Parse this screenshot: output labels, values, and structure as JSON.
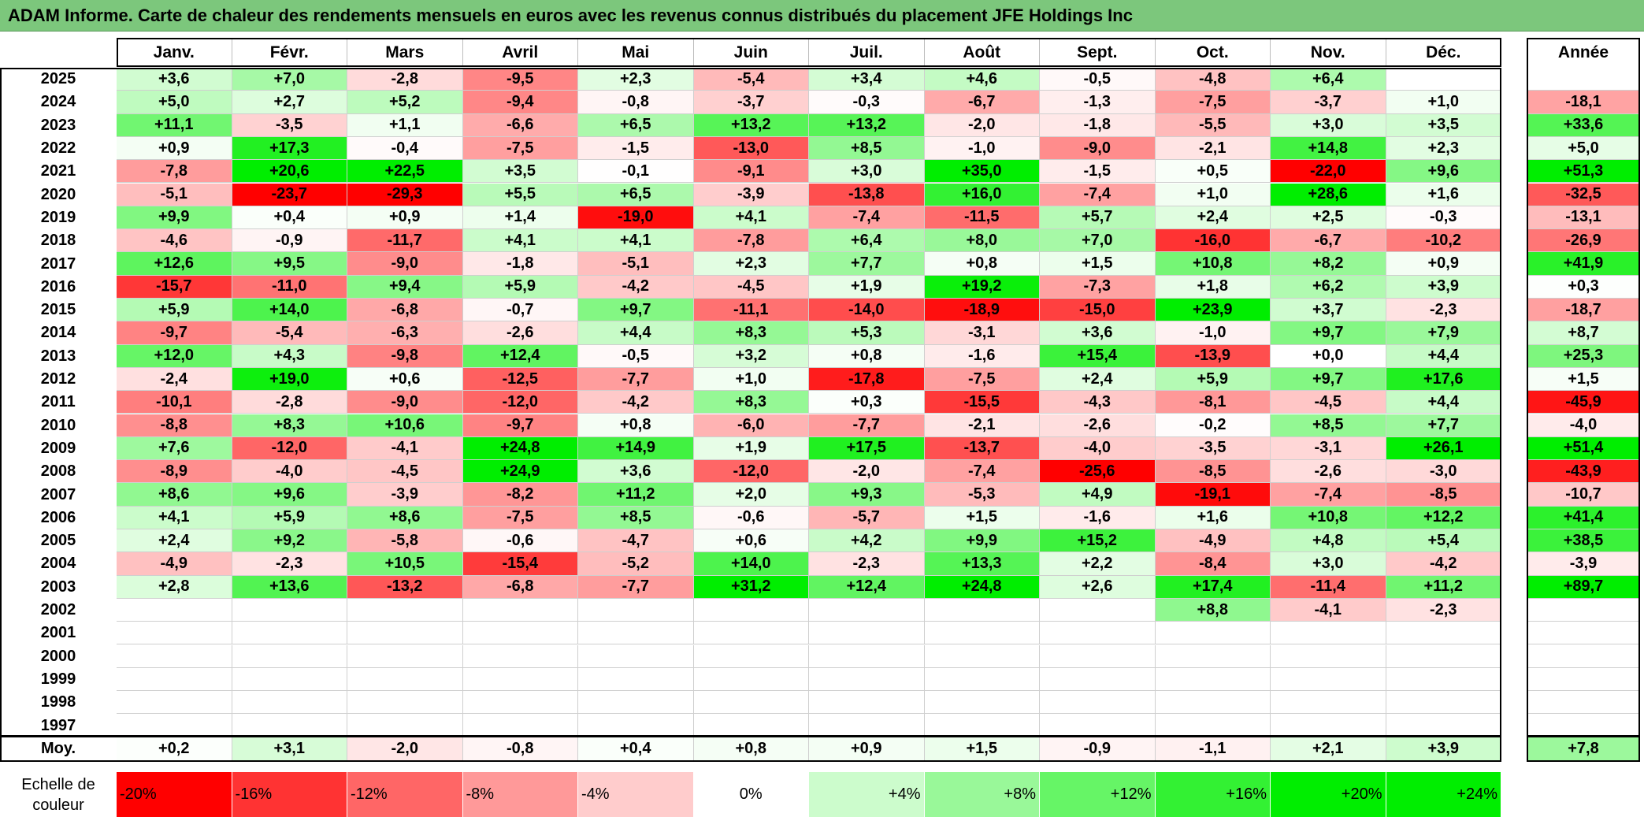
{
  "title": "ADAM Informe. Carte de chaleur des rendements mensuels en euros avec les revenus connus distribués du placement JFE Holdings Inc",
  "months": [
    "Janv.",
    "Févr.",
    "Mars",
    "Avril",
    "Mai",
    "Juin",
    "Juil.",
    "Août",
    "Sept.",
    "Oct.",
    "Nov.",
    "Déc."
  ],
  "year_header": "Année",
  "avg_label": "Moy.",
  "scale_label": "Echelle de couleur",
  "scale": [
    {
      "label": "-20%",
      "value": -20,
      "align": "left"
    },
    {
      "label": "-16%",
      "value": -16,
      "align": "left"
    },
    {
      "label": "-12%",
      "value": -12,
      "align": "left"
    },
    {
      "label": "-8%",
      "value": -8,
      "align": "left"
    },
    {
      "label": "-4%",
      "value": -4,
      "align": "left"
    },
    {
      "label": "0%",
      "value": 0,
      "align": "center"
    },
    {
      "label": "+4%",
      "value": 4,
      "align": "right"
    },
    {
      "label": "+8%",
      "value": 8,
      "align": "right"
    },
    {
      "label": "+12%",
      "value": 12,
      "align": "right"
    },
    {
      "label": "+16%",
      "value": 16,
      "align": "right"
    },
    {
      "label": "+20%",
      "value": 20,
      "align": "right"
    },
    {
      "label": "+24%",
      "value": 24,
      "align": "right"
    }
  ],
  "colors": {
    "title_bg": "#7cc77c",
    "max_red": "#ff0000",
    "max_green": "#00ee00",
    "neutral": "#ffffff"
  },
  "chart_data": {
    "type": "heatmap",
    "title": "ADAM Informe. Carte de chaleur des rendements mensuels en euros avec les revenus connus distribués du placement JFE Holdings Inc",
    "x": [
      "Janv.",
      "Févr.",
      "Mars",
      "Avril",
      "Mai",
      "Juin",
      "Juil.",
      "Août",
      "Sept.",
      "Oct.",
      "Nov.",
      "Déc."
    ],
    "rows": [
      {
        "year": "2025",
        "values": [
          "+3,6",
          "+7,0",
          "-2,8",
          "-9,5",
          "+2,3",
          "-5,4",
          "+3,4",
          "+4,6",
          "-0,5",
          "-4,8",
          "+6,4",
          ""
        ],
        "annual": ""
      },
      {
        "year": "2024",
        "values": [
          "+5,0",
          "+2,7",
          "+5,2",
          "-9,4",
          "-0,8",
          "-3,7",
          "-0,3",
          "-6,7",
          "-1,3",
          "-7,5",
          "-3,7",
          "+1,0"
        ],
        "annual": "-18,1"
      },
      {
        "year": "2023",
        "values": [
          "+11,1",
          "-3,5",
          "+1,1",
          "-6,6",
          "+6,5",
          "+13,2",
          "+13,2",
          "-2,0",
          "-1,8",
          "-5,5",
          "+3,0",
          "+3,5"
        ],
        "annual": "+33,6"
      },
      {
        "year": "2022",
        "values": [
          "+0,9",
          "+17,3",
          "-0,4",
          "-7,5",
          "-1,5",
          "-13,0",
          "+8,5",
          "-1,0",
          "-9,0",
          "-2,1",
          "+14,8",
          "+2,3"
        ],
        "annual": "+5,0"
      },
      {
        "year": "2021",
        "values": [
          "-7,8",
          "+20,6",
          "+22,5",
          "+3,5",
          "-0,1",
          "-9,1",
          "+3,0",
          "+35,0",
          "-1,5",
          "+0,5",
          "-22,0",
          "+9,6"
        ],
        "annual": "+51,3"
      },
      {
        "year": "2020",
        "values": [
          "-5,1",
          "-23,7",
          "-29,3",
          "+5,5",
          "+6,5",
          "-3,9",
          "-13,8",
          "+16,0",
          "-7,4",
          "+1,0",
          "+28,6",
          "+1,6"
        ],
        "annual": "-32,5"
      },
      {
        "year": "2019",
        "values": [
          "+9,9",
          "+0,4",
          "+0,9",
          "+1,4",
          "-19,0",
          "+4,1",
          "-7,4",
          "-11,5",
          "+5,7",
          "+2,4",
          "+2,5",
          "-0,3"
        ],
        "annual": "-13,1"
      },
      {
        "year": "2018",
        "values": [
          "-4,6",
          "-0,9",
          "-11,7",
          "+4,1",
          "+4,1",
          "-7,8",
          "+6,4",
          "+8,0",
          "+7,0",
          "-16,0",
          "-6,7",
          "-10,2"
        ],
        "annual": "-26,9"
      },
      {
        "year": "2017",
        "values": [
          "+12,6",
          "+9,5",
          "-9,0",
          "-1,8",
          "-5,1",
          "+2,3",
          "+7,7",
          "+0,8",
          "+1,5",
          "+10,8",
          "+8,2",
          "+0,9"
        ],
        "annual": "+41,9"
      },
      {
        "year": "2016",
        "values": [
          "-15,7",
          "-11,0",
          "+9,4",
          "+5,9",
          "-4,2",
          "-4,5",
          "+1,9",
          "+19,2",
          "-7,3",
          "+1,8",
          "+6,2",
          "+3,9"
        ],
        "annual": "+0,3"
      },
      {
        "year": "2015",
        "values": [
          "+5,9",
          "+14,0",
          "-6,8",
          "-0,7",
          "+9,7",
          "-11,1",
          "-14,0",
          "-18,9",
          "-15,0",
          "+23,9",
          "+3,7",
          "-2,3"
        ],
        "annual": "-18,7"
      },
      {
        "year": "2014",
        "values": [
          "-9,7",
          "-5,4",
          "-6,3",
          "-2,6",
          "+4,4",
          "+8,3",
          "+5,3",
          "-3,1",
          "+3,6",
          "-1,0",
          "+9,7",
          "+7,9"
        ],
        "annual": "+8,7"
      },
      {
        "year": "2013",
        "values": [
          "+12,0",
          "+4,3",
          "-9,8",
          "+12,4",
          "-0,5",
          "+3,2",
          "+0,8",
          "-1,6",
          "+15,4",
          "-13,9",
          "+0,0",
          "+4,4"
        ],
        "annual": "+25,3"
      },
      {
        "year": "2012",
        "values": [
          "-2,4",
          "+19,0",
          "+0,6",
          "-12,5",
          "-7,7",
          "+1,0",
          "-17,8",
          "-7,5",
          "+2,4",
          "+5,9",
          "+9,7",
          "+17,6"
        ],
        "annual": "+1,5"
      },
      {
        "year": "2011",
        "values": [
          "-10,1",
          "-2,8",
          "-9,0",
          "-12,0",
          "-4,2",
          "+8,3",
          "+0,3",
          "-15,5",
          "-4,3",
          "-8,1",
          "-4,5",
          "+4,4"
        ],
        "annual": "-45,9"
      },
      {
        "year": "2010",
        "values": [
          "-8,8",
          "+8,3",
          "+10,6",
          "-9,7",
          "+0,8",
          "-6,0",
          "-7,7",
          "-2,1",
          "-2,6",
          "-0,2",
          "+8,5",
          "+7,7"
        ],
        "annual": "-4,0"
      },
      {
        "year": "2009",
        "values": [
          "+7,6",
          "-12,0",
          "-4,1",
          "+24,8",
          "+14,9",
          "+1,9",
          "+17,5",
          "-13,7",
          "-4,0",
          "-3,5",
          "-3,1",
          "+26,1"
        ],
        "annual": "+51,4"
      },
      {
        "year": "2008",
        "values": [
          "-8,9",
          "-4,0",
          "-4,5",
          "+24,9",
          "+3,6",
          "-12,0",
          "-2,0",
          "-7,4",
          "-25,6",
          "-8,5",
          "-2,6",
          "-3,0"
        ],
        "annual": "-43,9"
      },
      {
        "year": "2007",
        "values": [
          "+8,6",
          "+9,6",
          "-3,9",
          "-8,2",
          "+11,2",
          "+2,0",
          "+9,3",
          "-5,3",
          "+4,9",
          "-19,1",
          "-7,4",
          "-8,5"
        ],
        "annual": "-10,7"
      },
      {
        "year": "2006",
        "values": [
          "+4,1",
          "+5,9",
          "+8,6",
          "-7,5",
          "+8,5",
          "-0,6",
          "-5,7",
          "+1,5",
          "-1,6",
          "+1,6",
          "+10,8",
          "+12,2"
        ],
        "annual": "+41,4"
      },
      {
        "year": "2005",
        "values": [
          "+2,4",
          "+9,2",
          "-5,8",
          "-0,6",
          "-4,7",
          "+0,6",
          "+4,2",
          "+9,9",
          "+15,2",
          "-4,9",
          "+4,8",
          "+5,4"
        ],
        "annual": "+38,5"
      },
      {
        "year": "2004",
        "values": [
          "-4,9",
          "-2,3",
          "+10,5",
          "-15,4",
          "-5,2",
          "+14,0",
          "-2,3",
          "+13,3",
          "+2,2",
          "-8,4",
          "+3,0",
          "-4,2"
        ],
        "annual": "-3,9"
      },
      {
        "year": "2003",
        "values": [
          "+2,8",
          "+13,6",
          "-13,2",
          "-6,8",
          "-7,7",
          "+31,2",
          "+12,4",
          "+24,8",
          "+2,6",
          "+17,4",
          "-11,4",
          "+11,2"
        ],
        "annual": "+89,7"
      },
      {
        "year": "2002",
        "values": [
          "",
          "",
          "",
          "",
          "",
          "",
          "",
          "",
          "",
          "+8,8",
          "-4,1",
          "-2,3"
        ],
        "annual": ""
      },
      {
        "year": "2001",
        "values": [
          "",
          "",
          "",
          "",
          "",
          "",
          "",
          "",
          "",
          "",
          "",
          ""
        ],
        "annual": ""
      },
      {
        "year": "2000",
        "values": [
          "",
          "",
          "",
          "",
          "",
          "",
          "",
          "",
          "",
          "",
          "",
          ""
        ],
        "annual": ""
      },
      {
        "year": "1999",
        "values": [
          "",
          "",
          "",
          "",
          "",
          "",
          "",
          "",
          "",
          "",
          "",
          ""
        ],
        "annual": ""
      },
      {
        "year": "1998",
        "values": [
          "",
          "",
          "",
          "",
          "",
          "",
          "",
          "",
          "",
          "",
          "",
          ""
        ],
        "annual": ""
      },
      {
        "year": "1997",
        "values": [
          "",
          "",
          "",
          "",
          "",
          "",
          "",
          "",
          "",
          "",
          "",
          ""
        ],
        "annual": ""
      }
    ],
    "averages": [
      "+0,2",
      "+3,1",
      "-2,0",
      "-0,8",
      "+0,4",
      "+0,8",
      "+0,9",
      "+1,5",
      "-0,9",
      "-1,1",
      "+2,1",
      "+3,9"
    ],
    "annual_average": "+7,8"
  }
}
